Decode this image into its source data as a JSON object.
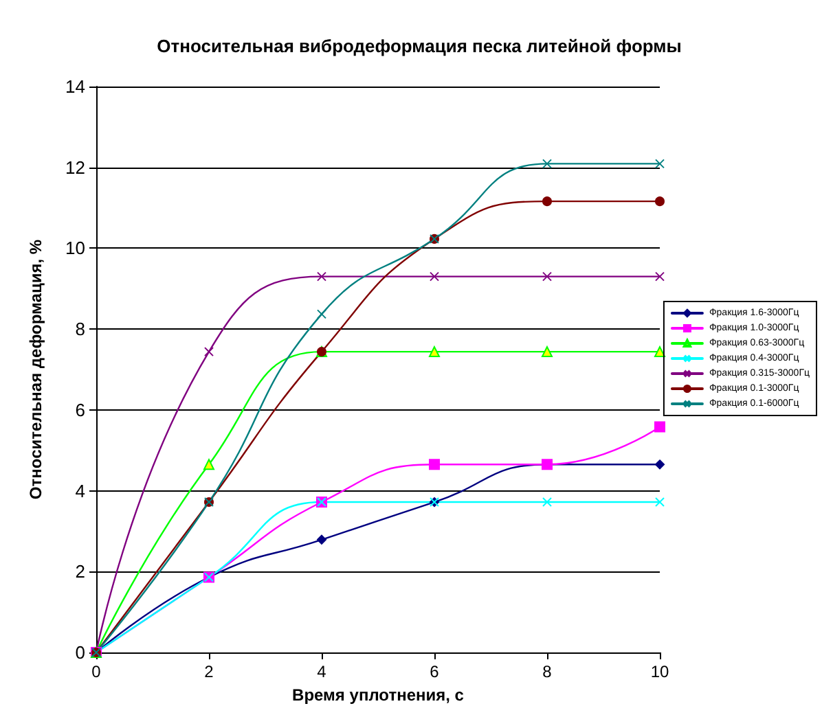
{
  "chart_data": {
    "type": "line",
    "title": "Относительная вибродеформация песка литейной формы",
    "xlabel": "Время уплотнения, с",
    "ylabel": "Относительная деформация, %",
    "x": [
      0,
      2,
      4,
      6,
      8,
      10
    ],
    "series": [
      {
        "name": "Фракция 1.6-3000Гц",
        "color": "#000080",
        "marker": "diamond",
        "values": [
          0,
          1.86,
          2.79,
          3.72,
          4.65,
          4.65
        ]
      },
      {
        "name": "Фракция 1.0-3000Гц",
        "color": "#ff00ff",
        "marker": "square",
        "values": [
          0,
          1.86,
          3.72,
          4.65,
          4.65,
          5.58
        ]
      },
      {
        "name": "Фракция 0.63-3000Гц",
        "color": "#00ff00",
        "marker": "triangle",
        "values": [
          0,
          4.65,
          7.44,
          7.44,
          7.44,
          7.44
        ]
      },
      {
        "name": "Фракция 0.4-3000Гц",
        "color": "#00ffff",
        "marker": "cross",
        "values": [
          0,
          1.86,
          3.72,
          3.72,
          3.72,
          3.72
        ]
      },
      {
        "name": "Фракция 0.315-3000Гц",
        "color": "#800080",
        "marker": "cross",
        "values": [
          0,
          7.44,
          9.3,
          9.3,
          9.3,
          9.3
        ]
      },
      {
        "name": "Фракция 0.1-3000Гц",
        "color": "#800000",
        "marker": "circle",
        "values": [
          0,
          3.72,
          7.44,
          10.23,
          11.16,
          11.16
        ]
      },
      {
        "name": "Фракция 0.1-6000Гц",
        "color": "#008080",
        "marker": "cross",
        "values": [
          0,
          3.72,
          8.37,
          10.23,
          12.09,
          12.09
        ]
      }
    ],
    "xlim": [
      0,
      10
    ],
    "xticks": [
      0,
      2,
      4,
      6,
      8,
      10
    ],
    "ylim": [
      0,
      14
    ],
    "yticks": [
      0,
      2,
      4,
      6,
      8,
      10,
      12,
      14
    ],
    "grid": "y",
    "legend": "right",
    "line_style": "solid"
  }
}
